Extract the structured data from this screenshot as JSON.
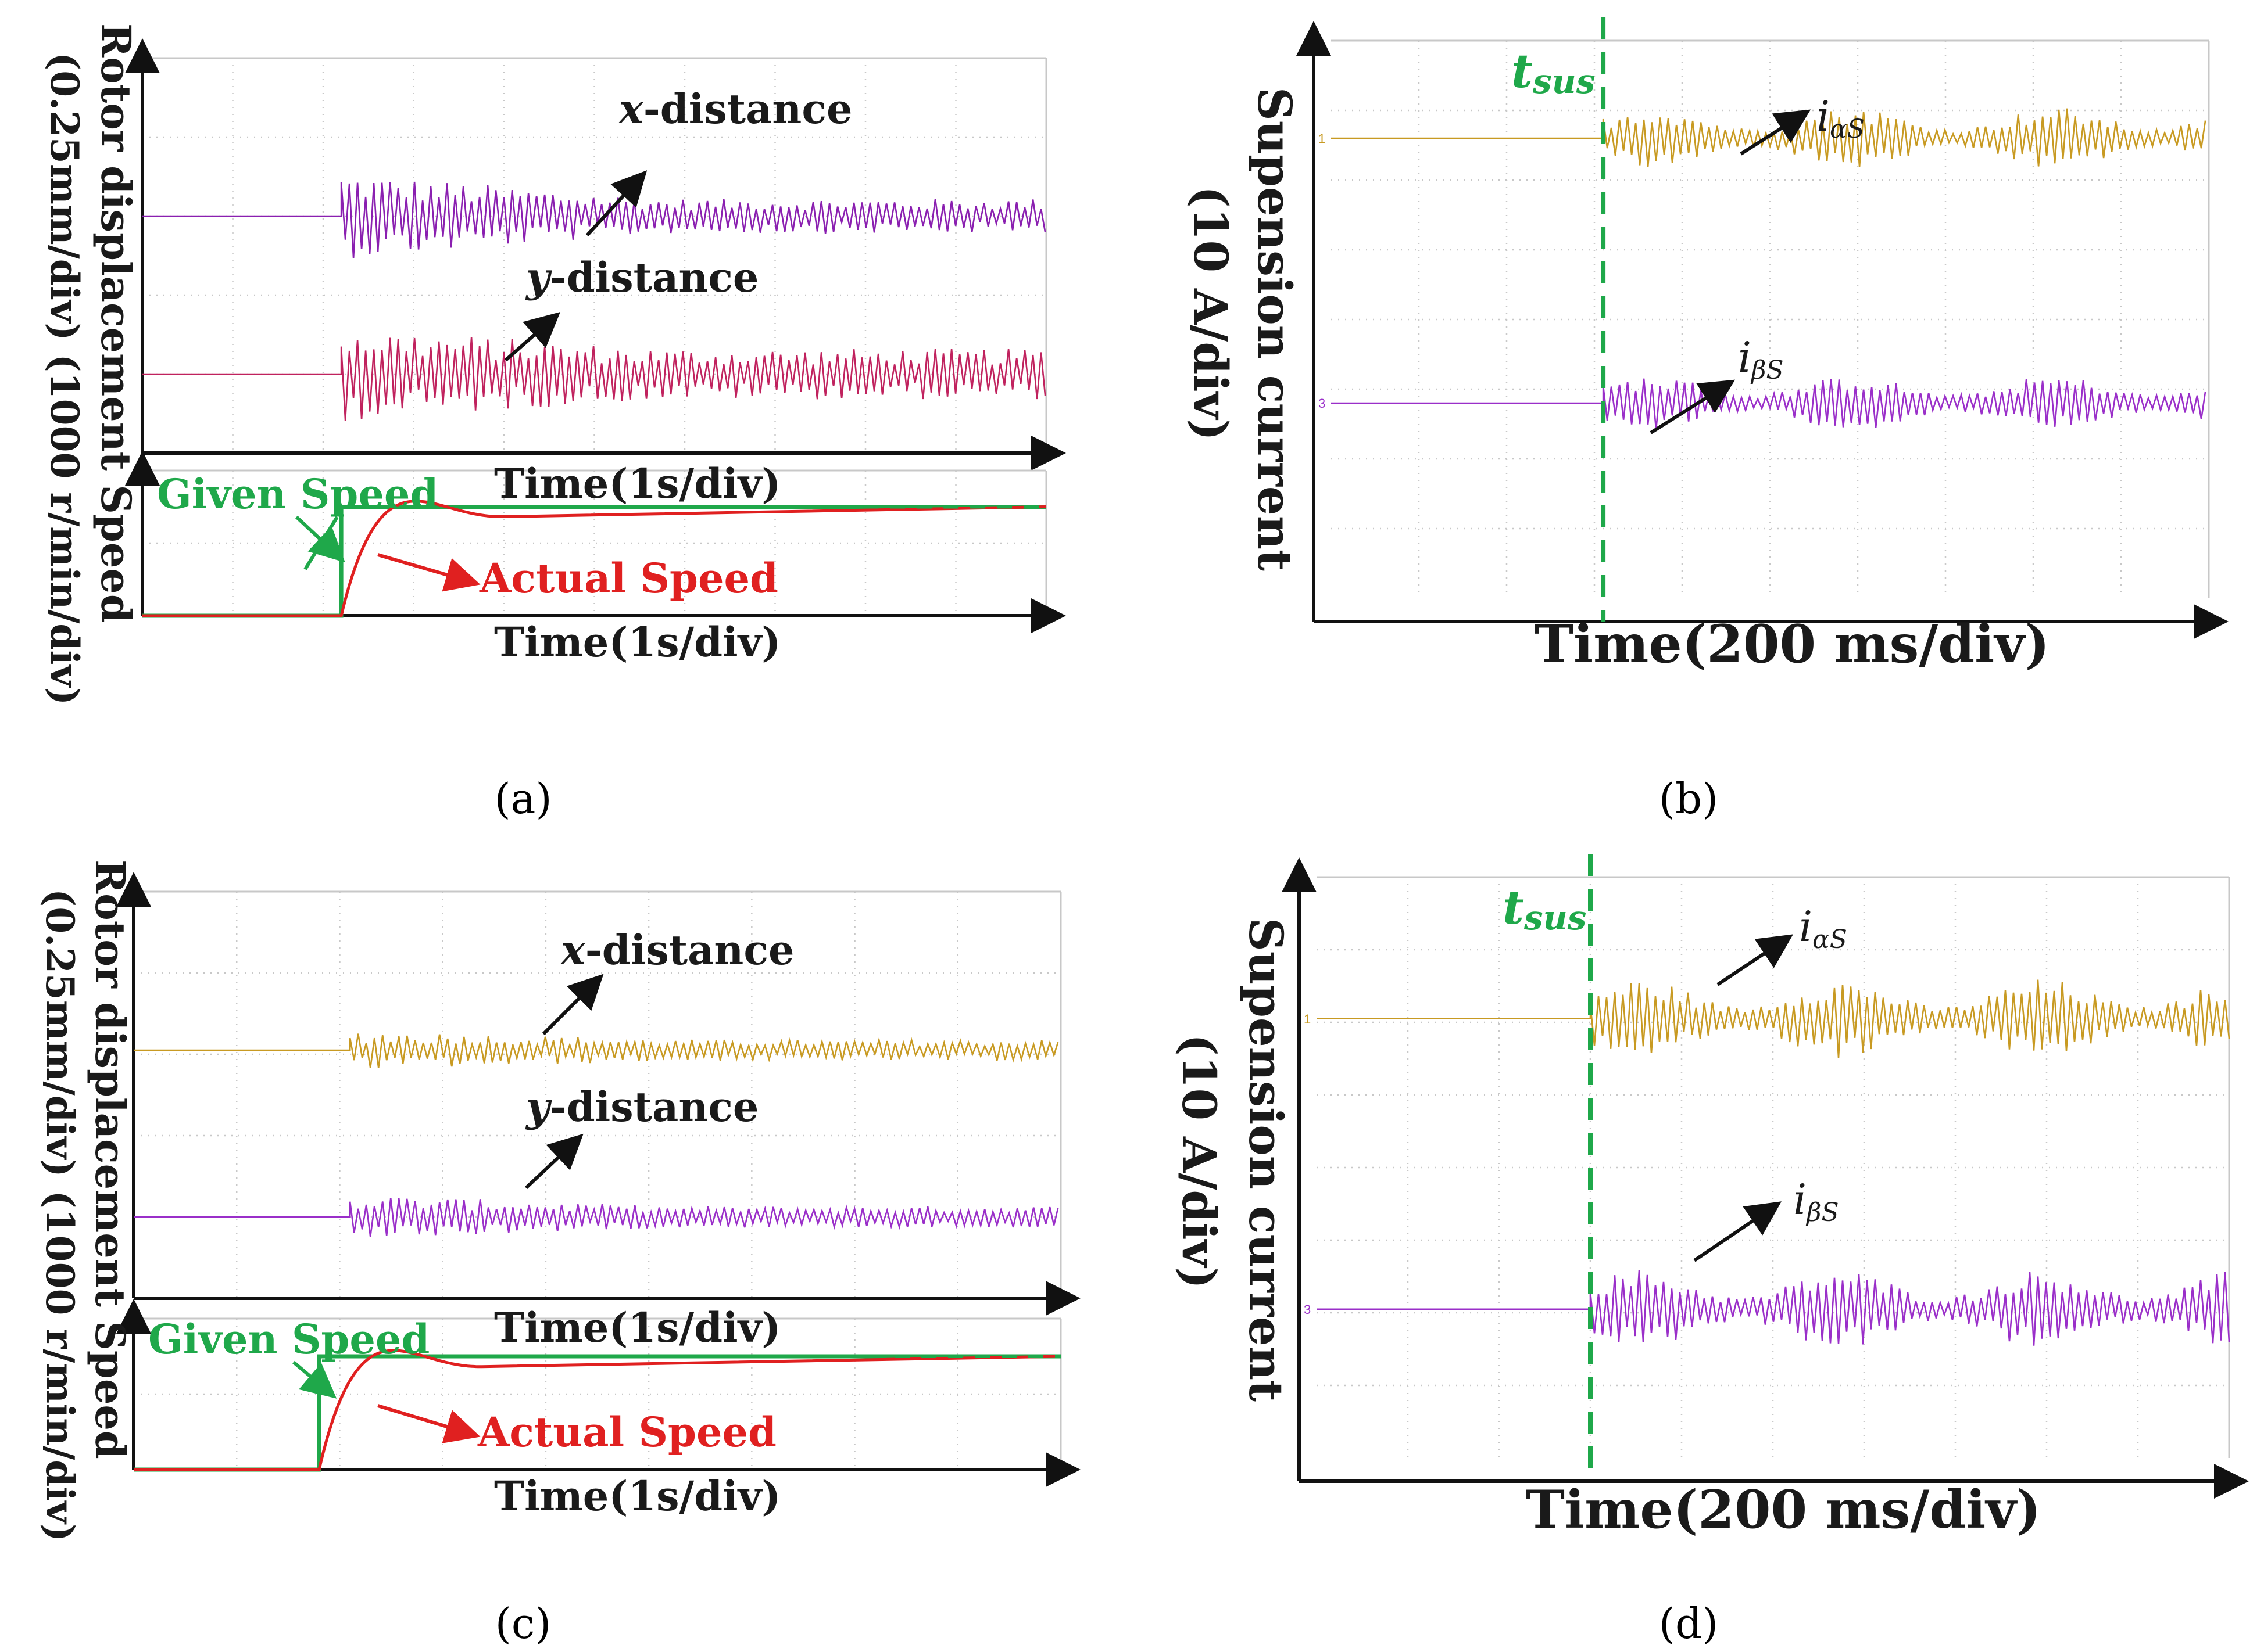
{
  "figure": {
    "captions": {
      "a": "(a)",
      "b": "(b)",
      "c": "(c)",
      "d": "(d)"
    }
  },
  "colors": {
    "x_a": "#8a1fb0",
    "y_a": "#c0225e",
    "x_c": "#c89a22",
    "y_c": "#9a2fc9",
    "i_alpha": "#c89a22",
    "i_beta": "#9a2fc9",
    "given": "#1fa84a",
    "actual": "#e02020",
    "tsus": "#1fa84a",
    "grid": "#c8c8c8",
    "axis": "#111111"
  },
  "chart_data": [
    {
      "panel": "a",
      "type": "line",
      "title": "",
      "ylabel_line1": "Rotor displacement  Speed",
      "ylabel_line2": "(0.25mm/div)  (1000 r/min/div)",
      "upper": {
        "xlabel": "Time(1s/div)",
        "divisions_x": 10,
        "divisions_y": 5,
        "series": [
          {
            "name": "x-distance",
            "label_prefix": "x",
            "label_suffix": "-distance",
            "level_div": 2.0,
            "start_div": 2.2,
            "amplitude_div": 0.55,
            "steady_amplitude_div": 0.22
          },
          {
            "name": "y-distance",
            "label_prefix": "y",
            "label_suffix": "-distance",
            "level_div": 4.0,
            "start_div": 2.2,
            "amplitude_div": 0.6,
            "steady_amplitude_div": 0.32
          }
        ]
      },
      "lower": {
        "xlabel": "Time(1s/div)",
        "given_label": "Given Speed",
        "actual_label": "Actual Speed",
        "step_time_div": 2.2,
        "final_level_div": 1.0,
        "overshoot_div": 0.22
      }
    },
    {
      "panel": "b",
      "type": "line",
      "ylabel_line1": "Supension current",
      "ylabel_line2": "(10 A/div)",
      "xlabel": "Time(200 ms/div)",
      "marker_label": "t",
      "marker_sub": "sus",
      "marker_time_div": 3.1,
      "divisions_x": 10,
      "divisions_y": 8,
      "series": [
        {
          "name": "iαS",
          "label_main": "i",
          "label_sub": "αS",
          "level_div": 1.4,
          "amplitude_div": 0.45,
          "channel": "1"
        },
        {
          "name": "iβS",
          "label_main": "i",
          "label_sub": "βS",
          "level_div": 5.2,
          "amplitude_div": 0.4,
          "channel": "3"
        }
      ]
    },
    {
      "panel": "c",
      "type": "line",
      "ylabel_line1": "Rotor displacement  Speed",
      "ylabel_line2": "(0.25mm/div)  (1000 r/min/div)",
      "upper": {
        "xlabel": "Time(1s/div)",
        "divisions_x": 9,
        "divisions_y": 5,
        "series": [
          {
            "name": "x-distance",
            "label_prefix": "x",
            "label_suffix": "-distance",
            "level_div": 1.95,
            "start_div": 2.1,
            "amplitude_div": 0.25,
            "steady_amplitude_div": 0.13
          },
          {
            "name": "y-distance",
            "label_prefix": "y",
            "label_suffix": "-distance",
            "level_div": 4.0,
            "start_div": 2.1,
            "amplitude_div": 0.28,
            "steady_amplitude_div": 0.13
          }
        ]
      },
      "lower": {
        "xlabel": "Time(1s/div)",
        "given_label": "Given Speed",
        "actual_label": "Actual Speed",
        "step_time_div": 2.0,
        "final_level_div": 1.0,
        "overshoot_div": 0.22
      }
    },
    {
      "panel": "d",
      "type": "line",
      "ylabel_line1": "Supension current",
      "ylabel_line2": "(10 A/div)",
      "xlabel": "Time(200 ms/div)",
      "marker_label": "t",
      "marker_sub": "sus",
      "marker_time_div": 3.0,
      "divisions_x": 10,
      "divisions_y": 8,
      "series": [
        {
          "name": "iαS",
          "label_main": "i",
          "label_sub": "αS",
          "level_div": 1.95,
          "amplitude_div": 0.55,
          "channel": "1"
        },
        {
          "name": "iβS",
          "label_main": "i",
          "label_sub": "βS",
          "level_div": 5.95,
          "amplitude_div": 0.55,
          "channel": "3"
        }
      ]
    }
  ]
}
